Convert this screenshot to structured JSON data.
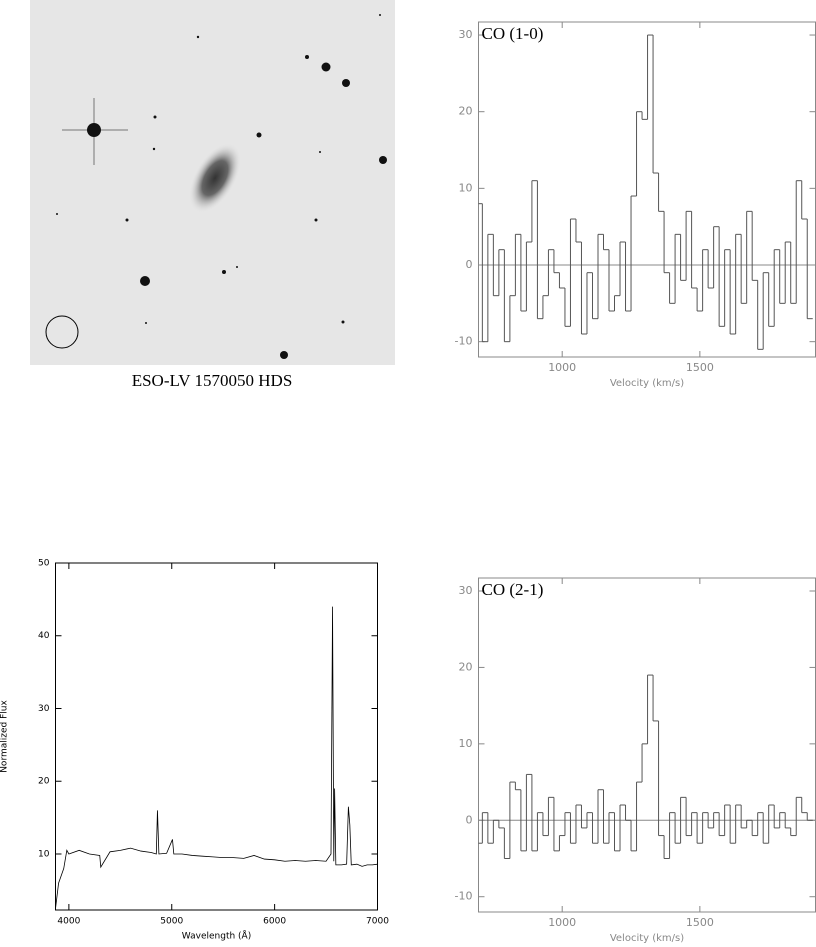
{
  "image": {
    "caption": "ESO-LV 1570050 HDS"
  },
  "chart_data": [
    {
      "type": "step",
      "title": "CO (1-0)",
      "x_label": "Velocity (km/s)",
      "color": "#555555",
      "x": [
        700,
        720,
        740,
        760,
        780,
        800,
        820,
        840,
        860,
        880,
        900,
        920,
        940,
        960,
        980,
        1000,
        1020,
        1040,
        1060,
        1080,
        1100,
        1120,
        1140,
        1160,
        1180,
        1200,
        1220,
        1240,
        1260,
        1280,
        1300,
        1320,
        1340,
        1360,
        1380,
        1400,
        1420,
        1440,
        1460,
        1480,
        1500,
        1520,
        1540,
        1560,
        1580,
        1600,
        1620,
        1640,
        1660,
        1680,
        1700,
        1720,
        1740,
        1760,
        1780,
        1800,
        1820,
        1840,
        1860,
        1880,
        1900
      ],
      "values": [
        8,
        -10,
        4,
        -4,
        2,
        -10,
        -4,
        4,
        -6,
        3,
        11,
        -7,
        -4,
        2,
        -1,
        -3,
        -8,
        6,
        3,
        -9,
        -1,
        -7,
        4,
        2,
        -6,
        -4,
        3,
        -6,
        9,
        20,
        19,
        30,
        12,
        7,
        -1,
        -5,
        4,
        -2,
        7,
        -3,
        -6,
        2,
        -3,
        5,
        -8,
        2,
        -9,
        4,
        -5,
        7,
        -2,
        -11,
        -1,
        -8,
        2,
        -5,
        3,
        -5,
        11,
        6,
        -7
      ],
      "xlim": [
        696,
        1920
      ],
      "ylim": [
        -12,
        31.7
      ],
      "xticks": [
        1000,
        1500
      ],
      "yticks": [
        -10,
        0,
        10,
        20,
        30
      ],
      "zero_line": true
    },
    {
      "type": "line",
      "x_label": "Wavelength (Å)",
      "y_label": "Normalized Flux",
      "color": "#000000",
      "x": [
        3870,
        3900,
        3950,
        3980,
        4000,
        4100,
        4200,
        4300,
        4310,
        4400,
        4500,
        4600,
        4700,
        4800,
        4850,
        4861,
        4875,
        4950,
        5007,
        5020,
        5100,
        5200,
        5300,
        5400,
        5500,
        5600,
        5700,
        5800,
        5900,
        6000,
        6100,
        6200,
        6300,
        6400,
        6500,
        6548,
        6563,
        6575,
        6583,
        6595,
        6650,
        6700,
        6717,
        6731,
        6745,
        6800,
        6850,
        6900,
        6950,
        7000
      ],
      "values": [
        2.5,
        6,
        8,
        10.5,
        10,
        10.5,
        10,
        9.8,
        8.2,
        10.3,
        10.5,
        10.8,
        10.4,
        10.2,
        10,
        16,
        10,
        10.1,
        12,
        10,
        10,
        9.8,
        9.7,
        9.6,
        9.5,
        9.5,
        9.4,
        9.8,
        9.3,
        9.2,
        9,
        9.1,
        9,
        9.1,
        9,
        10,
        44,
        9,
        19,
        8.5,
        8.5,
        8.6,
        16.5,
        14,
        8.5,
        8.6,
        8.3,
        8.5,
        8.5,
        8.6
      ],
      "xlim": [
        3870,
        7000
      ],
      "ylim": [
        2.3,
        50
      ],
      "xticks": [
        4000,
        5000,
        6000,
        7000
      ],
      "yticks": [
        10,
        20,
        30,
        40,
        50
      ]
    },
    {
      "type": "step",
      "title": "CO (2-1)",
      "x_label": "Velocity (km/s)",
      "color": "#555555",
      "x": [
        700,
        720,
        740,
        760,
        780,
        800,
        820,
        840,
        860,
        880,
        900,
        920,
        940,
        960,
        980,
        1000,
        1020,
        1040,
        1060,
        1080,
        1100,
        1120,
        1140,
        1160,
        1180,
        1200,
        1220,
        1240,
        1260,
        1280,
        1300,
        1320,
        1340,
        1360,
        1380,
        1400,
        1420,
        1440,
        1460,
        1480,
        1500,
        1520,
        1540,
        1560,
        1580,
        1600,
        1620,
        1640,
        1660,
        1680,
        1700,
        1720,
        1740,
        1760,
        1780,
        1800,
        1820,
        1840,
        1860,
        1880,
        1900
      ],
      "values": [
        -3,
        1,
        -3,
        0,
        -1,
        -5,
        5,
        4,
        -4,
        6,
        -4,
        1,
        -2,
        3,
        -4,
        -2,
        1,
        -3,
        2,
        -1,
        1,
        -3,
        4,
        -3,
        1,
        -4,
        2,
        0,
        -4,
        5,
        10,
        19,
        13,
        -2,
        -5,
        1,
        -3,
        3,
        -2,
        1,
        -3,
        1,
        -1,
        1,
        -2,
        2,
        -3,
        2,
        -1,
        0,
        -2,
        1,
        -3,
        2,
        -1,
        1,
        -1,
        -2,
        3,
        1,
        0
      ],
      "xlim": [
        696,
        1920
      ],
      "ylim": [
        -12,
        31.7
      ],
      "xticks": [
        1000,
        1500
      ],
      "yticks": [
        -10,
        0,
        10,
        20,
        30
      ],
      "zero_line": true
    }
  ]
}
